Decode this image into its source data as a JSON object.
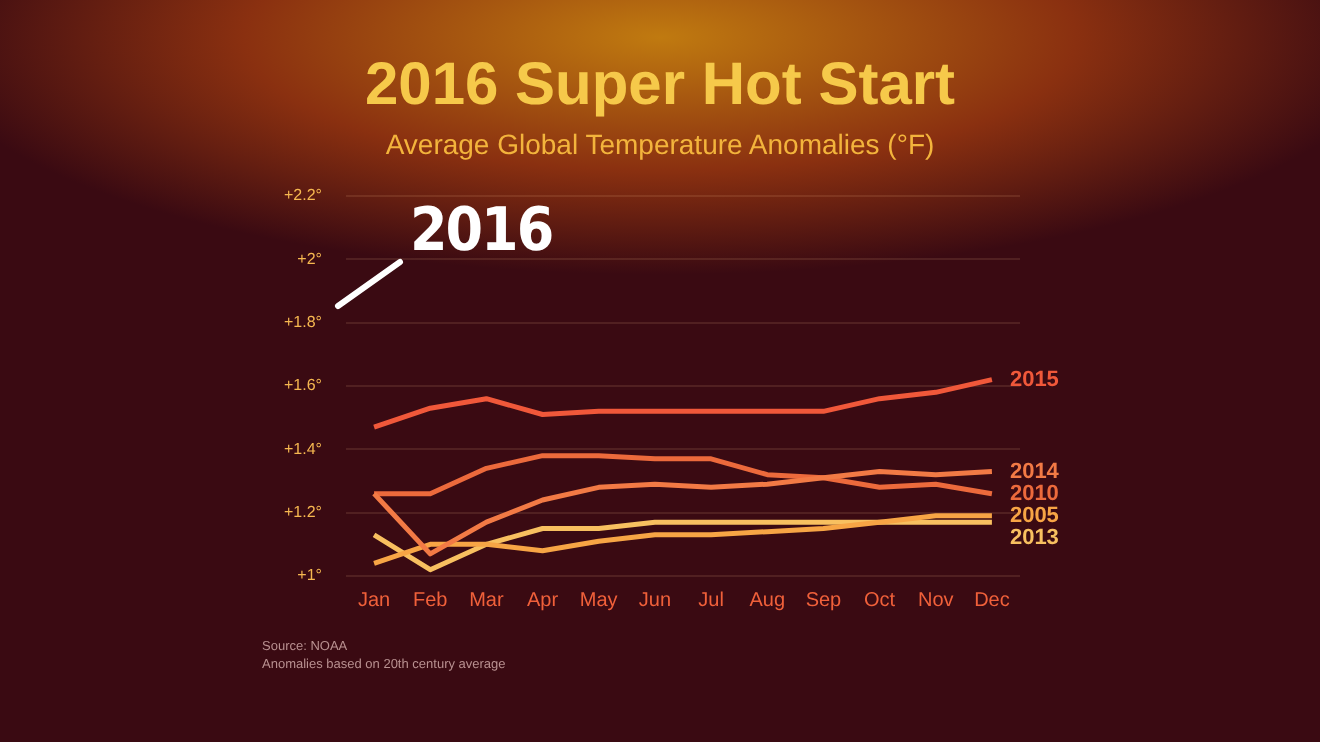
{
  "chart_data": {
    "type": "line",
    "title": "2016 Super Hot Start",
    "subtitle": "Average Global Temperature Anomalies (°F)",
    "categories": [
      "Jan",
      "Feb",
      "Mar",
      "Apr",
      "May",
      "Jun",
      "Jul",
      "Aug",
      "Sep",
      "Oct",
      "Nov",
      "Dec"
    ],
    "series": [
      {
        "name": "2015",
        "color": "#f0583a",
        "values": [
          1.47,
          1.53,
          1.56,
          1.51,
          1.52,
          1.52,
          1.52,
          1.52,
          1.52,
          1.56,
          1.58,
          1.62
        ]
      },
      {
        "name": "2014",
        "color": "#f27a45",
        "values": [
          1.26,
          1.07,
          1.17,
          1.24,
          1.28,
          1.29,
          1.28,
          1.29,
          1.31,
          1.33,
          1.32,
          1.33
        ]
      },
      {
        "name": "2010",
        "color": "#ec6a3c",
        "values": [
          1.26,
          1.26,
          1.34,
          1.38,
          1.38,
          1.37,
          1.37,
          1.32,
          1.31,
          1.28,
          1.29,
          1.26
        ]
      },
      {
        "name": "2005",
        "color": "#f7a545",
        "values": [
          1.04,
          1.1,
          1.1,
          1.08,
          1.11,
          1.13,
          1.13,
          1.14,
          1.15,
          1.17,
          1.19,
          1.19
        ]
      },
      {
        "name": "2013",
        "color": "#f8c060",
        "values": [
          1.13,
          1.02,
          1.1,
          1.15,
          1.15,
          1.17,
          1.17,
          1.17,
          1.17,
          1.17,
          1.17,
          1.17
        ]
      }
    ],
    "ylim": [
      1,
      2.2
    ],
    "yticks": [
      {
        "value": 1,
        "label": "+1°"
      },
      {
        "value": 1.2,
        "label": "+1.2°"
      },
      {
        "value": 1.4,
        "label": "+1.4°"
      },
      {
        "value": 1.6,
        "label": "+1.6°"
      },
      {
        "value": 1.8,
        "label": "+1.8°"
      },
      {
        "value": 2,
        "label": "+2°"
      },
      {
        "value": 2.2,
        "label": "+2.2°"
      }
    ],
    "grid": "y",
    "legend": false,
    "marker": "none",
    "line_style": "solid",
    "annotations": [
      "2016",
      "Source: NOAA",
      "Anomalies based on 20th century average"
    ]
  }
}
